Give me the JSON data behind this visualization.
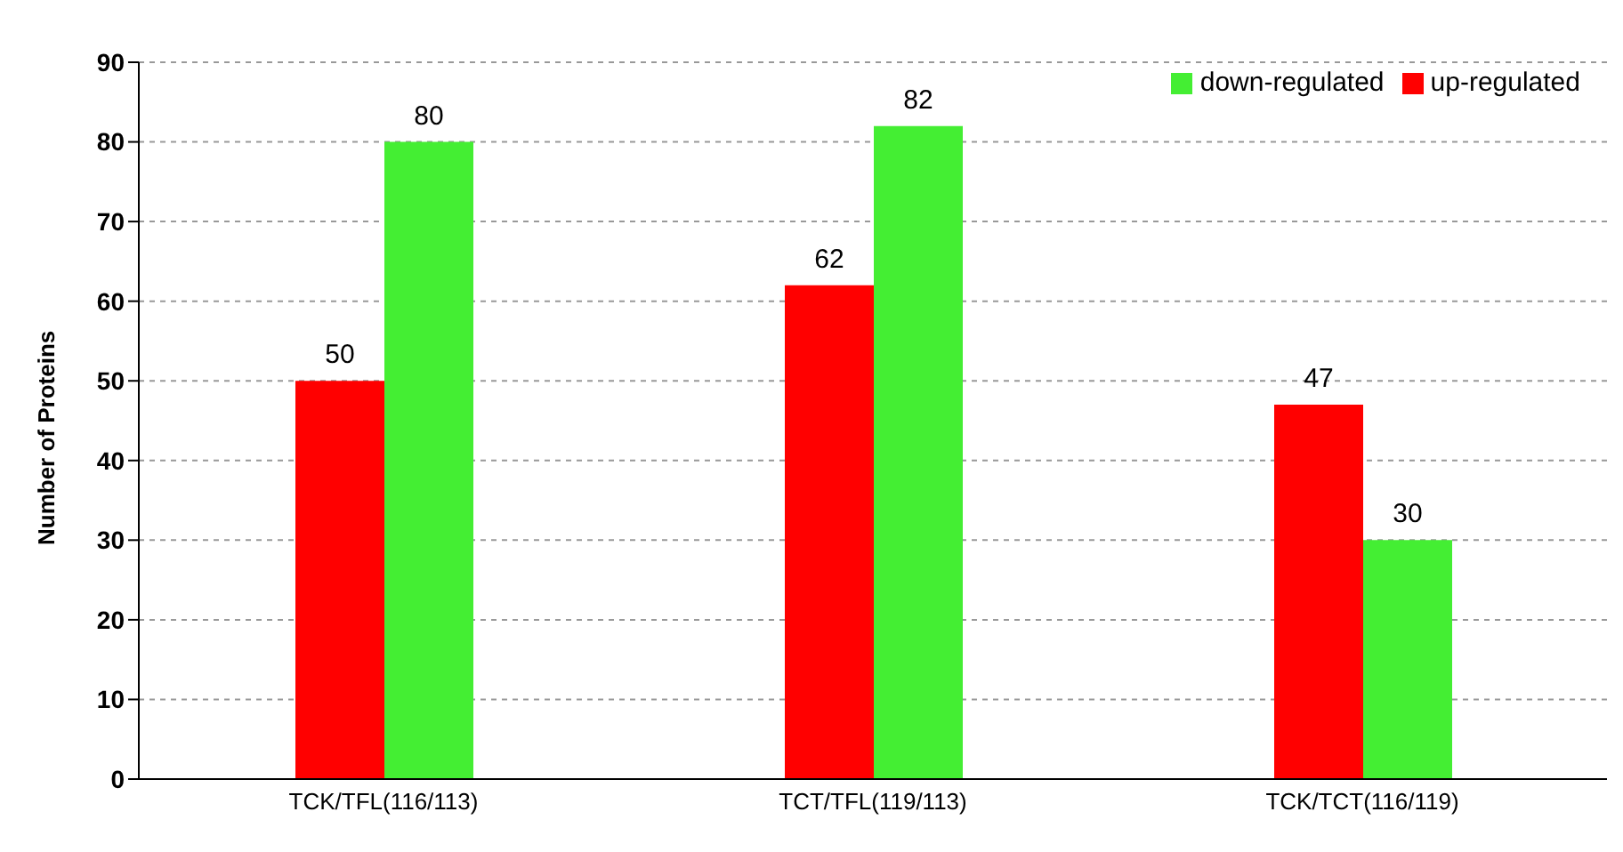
{
  "chart_data": {
    "type": "bar",
    "ylabel": "Number of Proteins",
    "categories": [
      "TCK/TFL(116/113)",
      "TCT/TFL(119/113)",
      "TCK/TCT(116/119)"
    ],
    "series": [
      {
        "name": "up-regulated",
        "color": "#ff0000",
        "values": [
          50,
          62,
          47
        ]
      },
      {
        "name": "down-regulated",
        "color": "#44ee33",
        "values": [
          80,
          82,
          30
        ]
      }
    ],
    "ylim": [
      0,
      90
    ],
    "yticks": [
      0,
      10,
      20,
      30,
      40,
      50,
      60,
      70,
      80,
      90
    ],
    "grid": "y",
    "legend": "top right",
    "data_labels": true
  }
}
